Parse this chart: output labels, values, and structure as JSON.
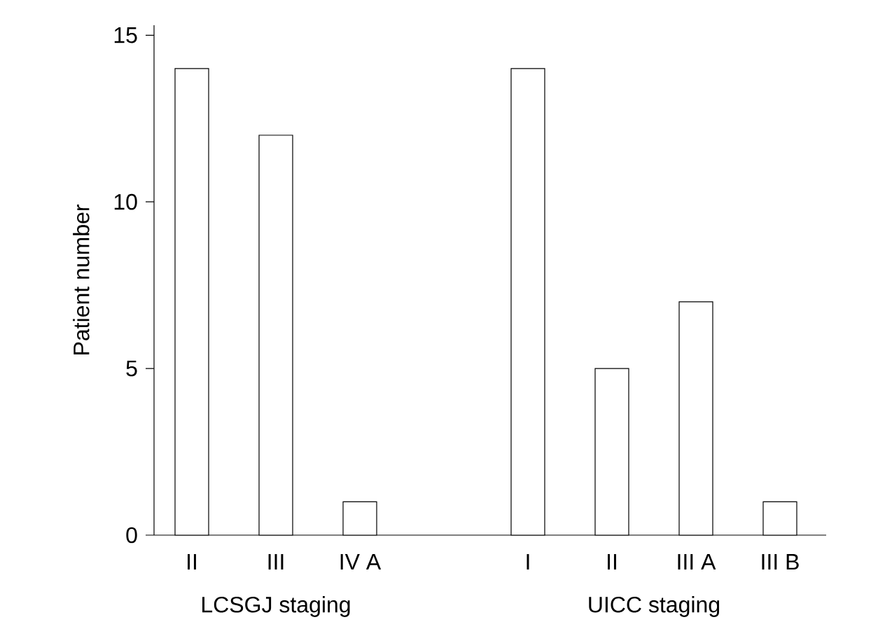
{
  "chart_data": {
    "type": "bar",
    "ylabel": "Patient number",
    "categories": [
      "II",
      "III",
      "IV A",
      null,
      "I",
      "II",
      "III A",
      "III B"
    ],
    "values": [
      14,
      12,
      1,
      null,
      14,
      5,
      7,
      1
    ],
    "color": "#ffffff",
    "ylim": [
      0,
      15.3
    ],
    "yticks": [
      0,
      5,
      10,
      15
    ],
    "annotations": [
      "LCSGJ staging",
      "UICC staging"
    ]
  }
}
